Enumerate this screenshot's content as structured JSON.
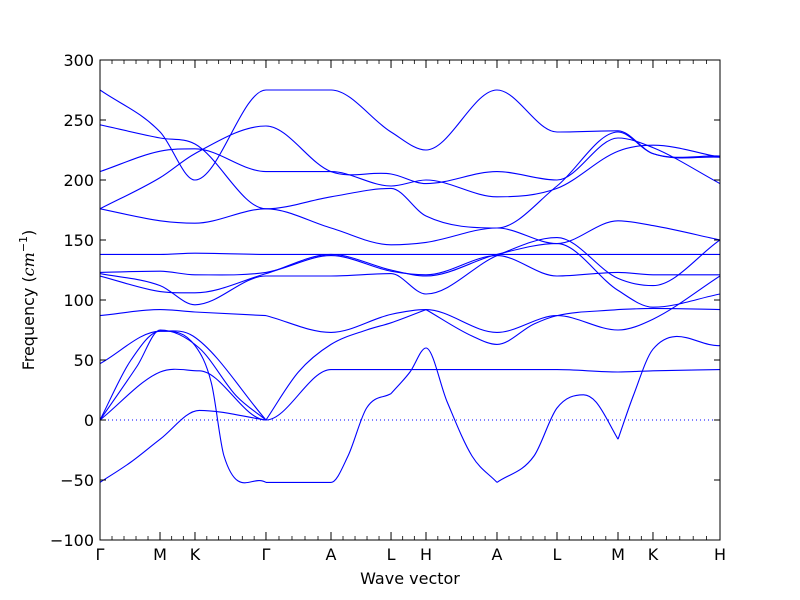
{
  "chart_data": {
    "type": "line",
    "xlabel": "Wave vector",
    "ylabel_main": "Frequency (",
    "ylabel_unit": "cm",
    "ylabel_exp": "−1",
    "ylabel_close": ")",
    "ylim": [
      -100,
      300
    ],
    "yticks": [
      -100,
      -50,
      0,
      50,
      100,
      150,
      200,
      250,
      300
    ],
    "ytick_labels": [
      "−100",
      "−50",
      "0",
      "50",
      "100",
      "150",
      "200",
      "250",
      "300"
    ],
    "xlim": [
      0,
      1
    ],
    "kpoints": [
      {
        "label": "Γ",
        "x": 0.0
      },
      {
        "label": "M",
        "x": 0.0968
      },
      {
        "label": "K",
        "x": 0.1532
      },
      {
        "label": "Γ",
        "x": 0.2677
      },
      {
        "label": "A",
        "x": 0.3726
      },
      {
        "label": "L",
        "x": 0.4694
      },
      {
        "label": "H",
        "x": 0.5258
      },
      {
        "label": "A",
        "x": 0.6403
      },
      {
        "label": "L",
        "x": 0.7371
      },
      {
        "label": "M",
        "x": 0.8355
      },
      {
        "label": "K",
        "x": 0.8919
      },
      {
        "label": "H",
        "x": 1.0
      }
    ],
    "zero_line": true,
    "series": [
      {
        "x": [
          0,
          0.06,
          0.097,
          0.16,
          0.22,
          0.2677
        ],
        "y": [
          0,
          45,
          75,
          60,
          20,
          0
        ]
      },
      {
        "x": [
          0,
          0.05,
          0.097,
          0.15,
          0.2677
        ],
        "y": [
          0,
          50,
          74,
          70,
          0
        ]
      },
      {
        "x": [
          0,
          0.05,
          0.097,
          0.16,
          0.2677
        ],
        "y": [
          -52,
          -35,
          -16,
          8,
          0
        ]
      },
      {
        "x": [
          0,
          0.097,
          0.16,
          0.2677,
          0.3726,
          0.45,
          0.4694,
          0.5258,
          0.6403,
          0.7371,
          0.8355,
          0.8919,
          1.0
        ],
        "y": [
          0,
          40,
          41,
          0,
          42,
          42,
          42,
          42,
          42,
          42,
          40,
          41,
          42
        ]
      },
      {
        "x": [
          0,
          0.097,
          0.1532,
          0.18,
          0.2,
          0.2677
        ],
        "y": [
          47,
          74,
          62,
          30,
          -30,
          -52
        ]
      },
      {
        "x": [
          0.2677,
          0.3726,
          0.4,
          0.43,
          0.4694
        ],
        "y": [
          -52,
          -52,
          -30,
          10,
          22
        ]
      },
      {
        "x": [
          0.2677,
          0.32,
          0.3726,
          0.43,
          0.4694,
          0.5258
        ],
        "y": [
          0,
          40,
          63,
          75,
          81,
          92
        ]
      },
      {
        "x": [
          0.4694,
          0.5,
          0.5258,
          0.56,
          0.6,
          0.6403
        ],
        "y": [
          22,
          40,
          60,
          15,
          -30,
          -52
        ]
      },
      {
        "x": [
          0.6403,
          0.7,
          0.7371,
          0.78,
          0.8,
          0.8355
        ],
        "y": [
          -52,
          -30,
          10,
          21,
          15,
          -16
        ]
      },
      {
        "x": [
          0.8355,
          0.86,
          0.8919,
          1.0
        ],
        "y": [
          -16,
          20,
          59,
          62
        ]
      },
      {
        "x": [
          0.5258,
          0.6,
          0.6403,
          0.7,
          0.7371,
          0.8355
        ],
        "y": [
          92,
          70,
          63,
          80,
          87,
          92
        ]
      },
      {
        "x": [
          0.8355,
          0.8919,
          1.0
        ],
        "y": [
          92,
          93,
          92
        ]
      },
      {
        "x": [
          0,
          0.097,
          0.1532,
          0.2677
        ],
        "y": [
          87,
          92,
          90,
          87
        ]
      },
      {
        "x": [
          0.2677,
          0.3726,
          0.4694,
          0.5258,
          0.6403,
          0.7371,
          0.8355,
          0.8919,
          1.0
        ],
        "y": [
          87,
          73,
          88,
          92,
          73,
          87,
          75,
          84,
          120
        ]
      },
      {
        "x": [
          0,
          0.097,
          0.1532,
          0.2677,
          0.3726,
          0.4694,
          0.5258,
          0.6403,
          0.7371,
          0.8355,
          0.8919,
          1.0
        ],
        "y": [
          120,
          107,
          106,
          122,
          138,
          125,
          120,
          138,
          147,
          108,
          94,
          105
        ]
      },
      {
        "x": [
          0,
          0.097,
          0.1532,
          0.2677,
          0.3726,
          0.4694,
          0.5258,
          0.6403,
          0.7371,
          0.8355,
          0.8919,
          1.0
        ],
        "y": [
          122,
          112,
          96,
          120,
          120,
          122,
          105,
          137,
          152,
          118,
          112,
          150
        ]
      },
      {
        "x": [
          0,
          0.097,
          0.1532,
          0.2677,
          0.3726,
          0.4694,
          0.5258,
          0.6403,
          0.7371,
          0.8355,
          0.8919,
          1.0
        ],
        "y": [
          123,
          124,
          121,
          123,
          137,
          124,
          121,
          137,
          120,
          123,
          121,
          121
        ]
      },
      {
        "x": [
          0,
          0.097,
          0.1532,
          0.2677,
          0.3726,
          0.4694,
          0.5258,
          0.6403,
          0.7371,
          0.8355,
          0.8919,
          1.0
        ],
        "y": [
          138,
          138,
          139,
          138,
          138,
          138,
          138,
          138,
          138,
          138,
          138,
          138
        ]
      },
      {
        "x": [
          0,
          0.097,
          0.1532,
          0.2677,
          0.3726,
          0.4694,
          0.5258,
          0.6403,
          0.7371,
          0.8355,
          0.8919,
          1.0
        ],
        "y": [
          176,
          166,
          164,
          176,
          160,
          146,
          148,
          160,
          147,
          166,
          162,
          150
        ]
      },
      {
        "x": [
          0,
          0.097,
          0.1532,
          0.2677,
          0.3726,
          0.4694,
          0.5258,
          0.6403,
          0.7371,
          0.8355,
          0.8919,
          1.0
        ],
        "y": [
          176,
          202,
          222,
          245,
          207,
          205,
          197,
          207,
          200,
          235,
          227,
          197
        ]
      },
      {
        "x": [
          0,
          0.097,
          0.1532,
          0.2677,
          0.3726,
          0.4694,
          0.5258,
          0.6403,
          0.7371,
          0.8355,
          0.8919,
          1.0
        ],
        "y": [
          207,
          224,
          226,
          207,
          207,
          195,
          200,
          186,
          193,
          224,
          229,
          219
        ]
      },
      {
        "x": [
          0,
          0.097,
          0.1532,
          0.2677,
          0.3726,
          0.4694,
          0.5258,
          0.6403,
          0.7371,
          0.8355,
          0.8919,
          1.0
        ],
        "y": [
          246,
          235,
          230,
          176,
          186,
          193,
          170,
          160,
          195,
          240,
          222,
          220
        ]
      },
      {
        "x": [
          0,
          0.097,
          0.1532,
          0.2677,
          0.3726,
          0.4694,
          0.5258,
          0.6403,
          0.7371,
          0.8355,
          0.8919,
          1.0
        ],
        "y": [
          275,
          240,
          200,
          275,
          275,
          240,
          225,
          275,
          240,
          241,
          222,
          219
        ]
      }
    ]
  }
}
